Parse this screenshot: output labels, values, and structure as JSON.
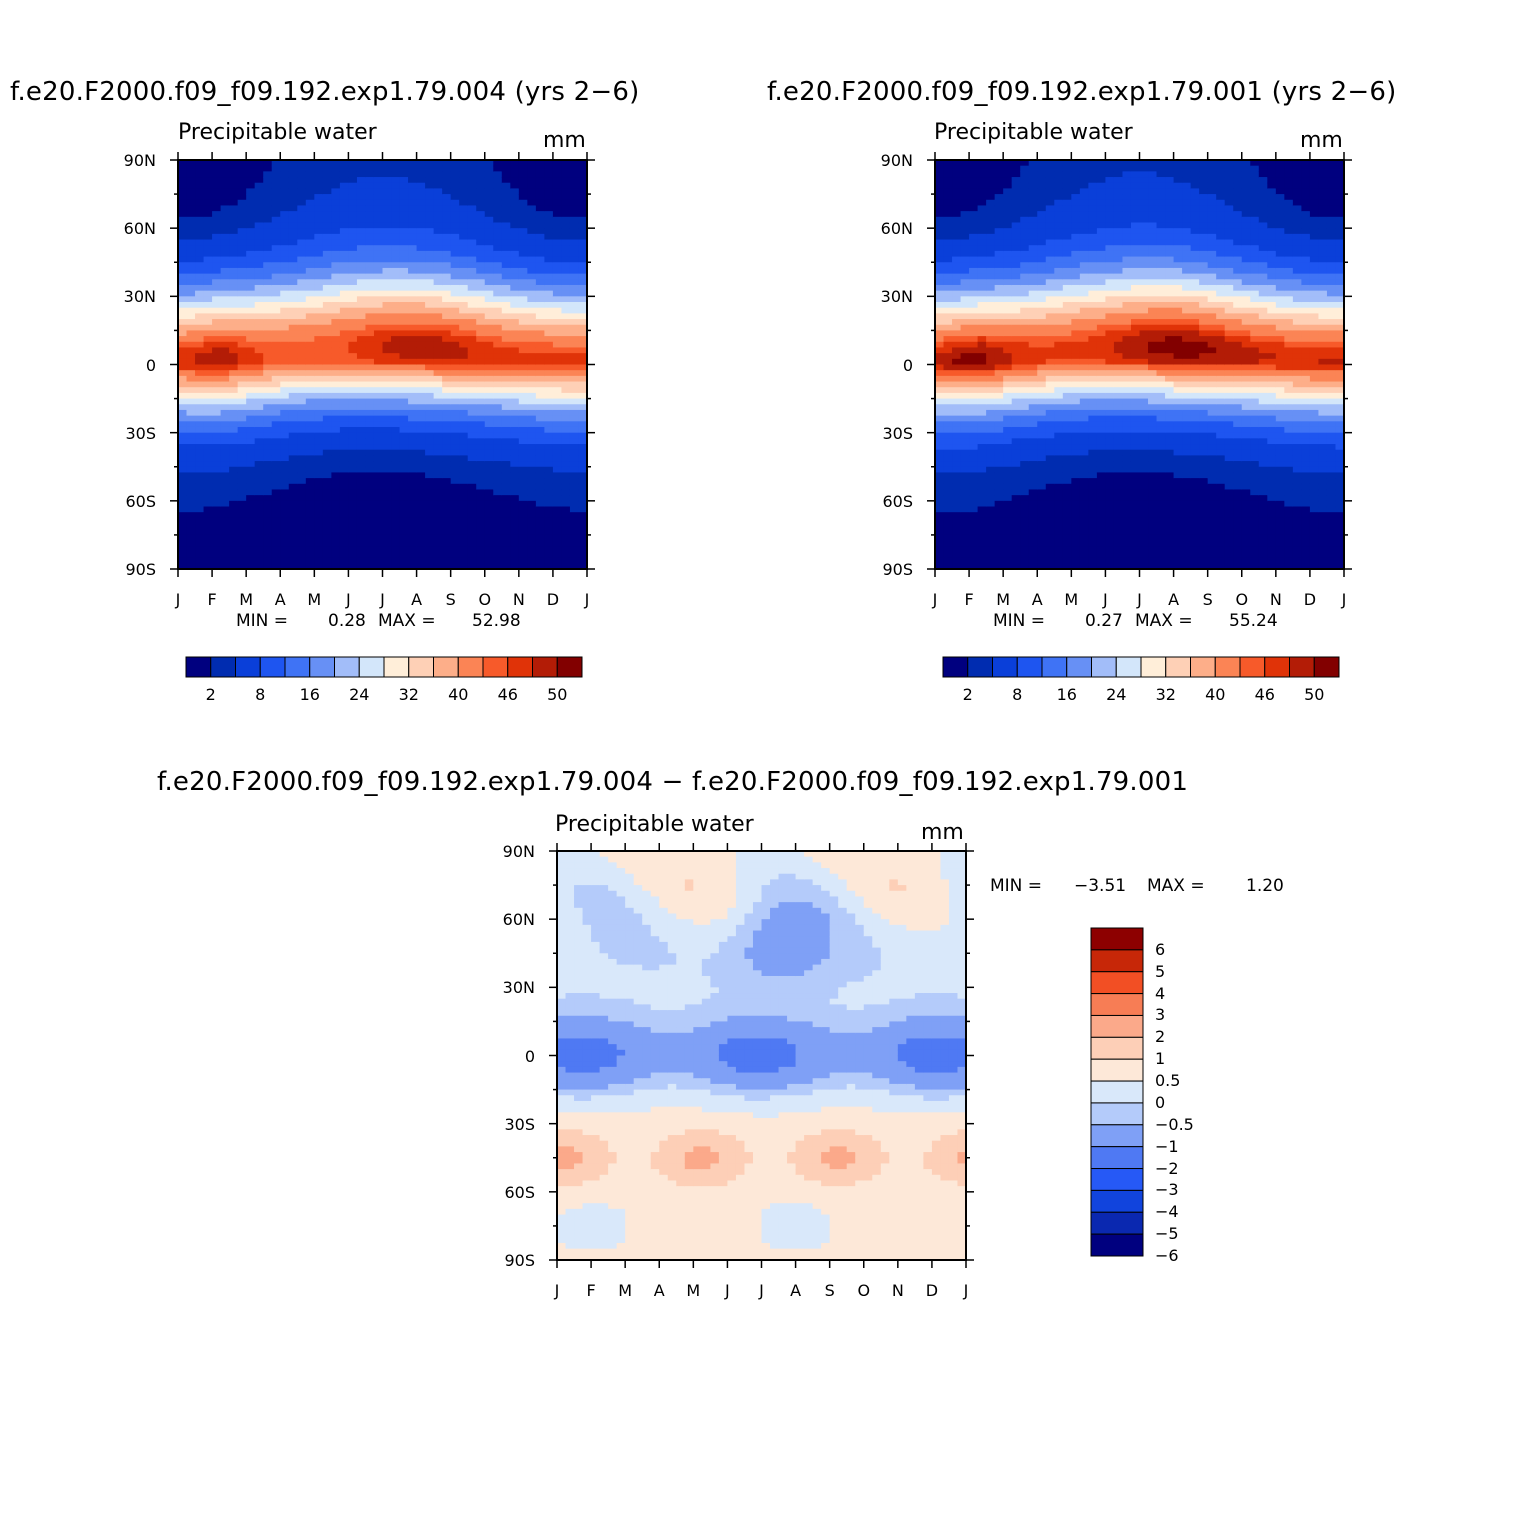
{
  "chart_data": [
    {
      "type": "heatmap",
      "title": "f.e20.F2000.f09_f09.192.exp1.79.004 (yrs 2−6)",
      "subtitle": "Precipitable water",
      "units": "mm",
      "x_ticks": [
        "J",
        "F",
        "M",
        "A",
        "M",
        "J",
        "J",
        "A",
        "S",
        "O",
        "N",
        "D",
        "J"
      ],
      "y_ticks": [
        "90N",
        "60N",
        "30N",
        "0",
        "30S",
        "60S",
        "90S"
      ],
      "ylim": [
        -90,
        90
      ],
      "min_label": "MIN =",
      "min_value": "0.28",
      "max_label": "MAX =",
      "max_value": "52.98",
      "colorbar_labels": [
        "2",
        "8",
        "16",
        "24",
        "32",
        "40",
        "46",
        "50"
      ],
      "levels": [
        2,
        4,
        8,
        12,
        16,
        20,
        24,
        28,
        32,
        36,
        40,
        44,
        46,
        48,
        50
      ],
      "value_range": [
        0.28,
        52.98
      ]
    },
    {
      "type": "heatmap",
      "title": "f.e20.F2000.f09_f09.192.exp1.79.001 (yrs 2−6)",
      "subtitle": "Precipitable water",
      "units": "mm",
      "x_ticks": [
        "J",
        "F",
        "M",
        "A",
        "M",
        "J",
        "J",
        "A",
        "S",
        "O",
        "N",
        "D",
        "J"
      ],
      "y_ticks": [
        "90N",
        "60N",
        "30N",
        "0",
        "30S",
        "60S",
        "90S"
      ],
      "ylim": [
        -90,
        90
      ],
      "min_label": "MIN =",
      "min_value": "0.27",
      "max_label": "MAX =",
      "max_value": "55.24",
      "colorbar_labels": [
        "2",
        "8",
        "16",
        "24",
        "32",
        "40",
        "46",
        "50"
      ],
      "levels": [
        2,
        4,
        8,
        12,
        16,
        20,
        24,
        28,
        32,
        36,
        40,
        44,
        46,
        48,
        50
      ],
      "value_range": [
        0.27,
        55.24
      ]
    },
    {
      "type": "heatmap",
      "title": "f.e20.F2000.f09_f09.192.exp1.79.004 − f.e20.F2000.f09_f09.192.exp1.79.001",
      "subtitle": "Precipitable water",
      "units": "mm",
      "x_ticks": [
        "J",
        "F",
        "M",
        "A",
        "M",
        "J",
        "J",
        "A",
        "S",
        "O",
        "N",
        "D",
        "J"
      ],
      "y_ticks": [
        "90N",
        "60N",
        "30N",
        "0",
        "30S",
        "60S",
        "90S"
      ],
      "ylim": [
        -90,
        90
      ],
      "min_label": "MIN =",
      "min_value": "−3.51",
      "max_label": "MAX =",
      "max_value": "1.20",
      "colorbar_labels": [
        "6",
        "5",
        "4",
        "3",
        "2",
        "1",
        "0.5",
        "0",
        "−0.5",
        "−1",
        "−2",
        "−3",
        "−4",
        "−5",
        "−6"
      ],
      "levels": [
        -6,
        -5,
        -4,
        -3,
        -2,
        -1,
        -0.5,
        0,
        0.5,
        1,
        2,
        3,
        4,
        5,
        6
      ],
      "value_range": [
        -3.51,
        1.2
      ]
    }
  ],
  "colors": {
    "seq": [
      "#00007f",
      "#002cb0",
      "#0a3fd9",
      "#1e55f0",
      "#3f73f5",
      "#6790f5",
      "#a2bdf9",
      "#d3e6fa",
      "#ffeed9",
      "#fed0b6",
      "#fdae89",
      "#fb8455",
      "#f75a2a",
      "#e03308",
      "#b31c06",
      "#820000"
    ],
    "div": [
      "#00007f",
      "#0a28b0",
      "#1144dd",
      "#2659f6",
      "#4f79f3",
      "#7fa0f6",
      "#b4cbfa",
      "#d9e8fa",
      "#fde8d8",
      "#fdcfb7",
      "#fba98a",
      "#f77d55",
      "#f24f24",
      "#c72708",
      "#8d0000"
    ]
  }
}
